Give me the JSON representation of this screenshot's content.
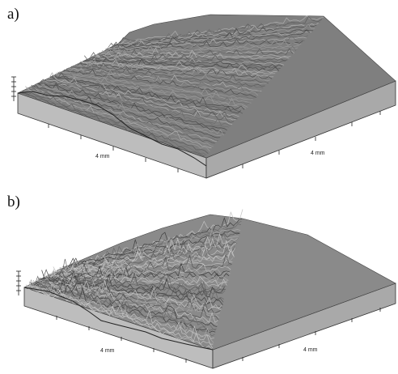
{
  "panels": [
    {
      "label": "a)",
      "x_axis_label": "4 mm",
      "y_axis_label": "4 mm"
    },
    {
      "label": "b)",
      "x_axis_label": "4 mm",
      "y_axis_label": "4 mm"
    }
  ]
}
